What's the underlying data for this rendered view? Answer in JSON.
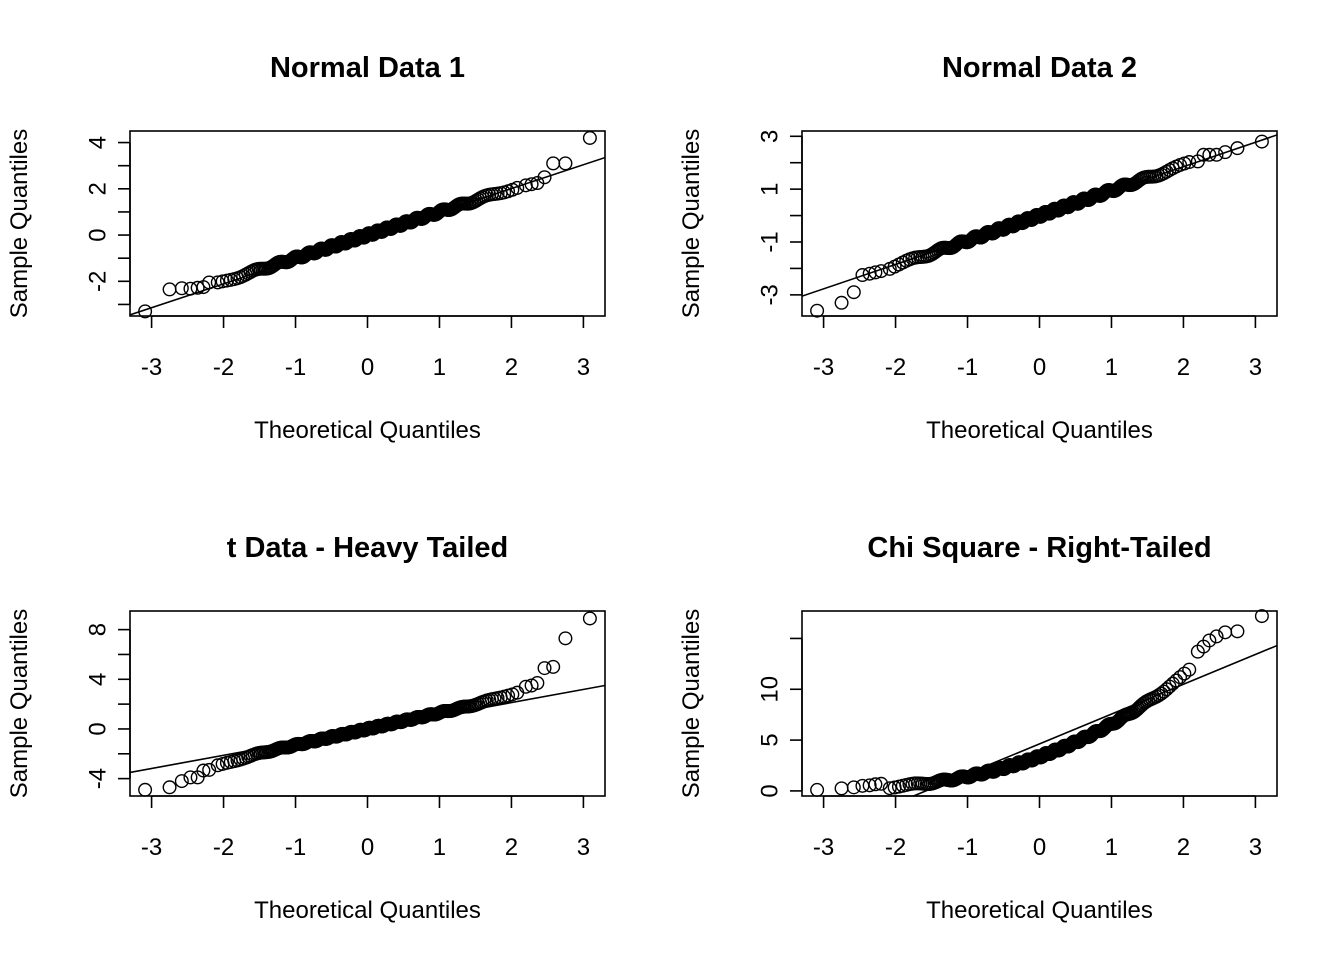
{
  "chart_data": [
    {
      "type": "scatter",
      "title": "Normal Data 1",
      "xlabel": "Theoretical Quantiles",
      "ylabel": "Sample Quantiles",
      "xlim": [
        -3.3,
        3.3
      ],
      "ylim": [
        -3.5,
        4.5
      ],
      "xticks": [
        -3,
        -2,
        -1,
        0,
        1,
        2,
        3
      ],
      "yticks": [
        -3,
        -2,
        -1,
        0,
        1,
        2,
        3,
        4
      ],
      "ytick_labels": [
        "",
        "-2",
        "",
        "0",
        "",
        "2",
        "",
        "4"
      ],
      "grid": false,
      "shape": "normal",
      "scale": 1.0,
      "tail": [
        [
          -3.09,
          -3.3
        ],
        [
          -2.75,
          -2.35
        ],
        [
          -2.58,
          -2.3
        ],
        [
          -2.46,
          -2.32
        ],
        [
          -2.36,
          -2.28
        ],
        [
          -2.28,
          -2.25
        ],
        [
          -2.2,
          -2.05
        ],
        [
          2.2,
          2.15
        ],
        [
          2.28,
          2.2
        ],
        [
          2.36,
          2.25
        ],
        [
          2.46,
          2.5
        ],
        [
          2.58,
          3.1
        ],
        [
          2.75,
          3.1
        ],
        [
          3.09,
          4.2
        ]
      ],
      "ref_line": [
        [
          -3.3,
          -3.45
        ],
        [
          3.3,
          3.35
        ]
      ]
    },
    {
      "type": "scatter",
      "title": "Normal Data 2",
      "xlabel": "Theoretical Quantiles",
      "ylabel": "Sample Quantiles",
      "xlim": [
        -3.3,
        3.3
      ],
      "ylim": [
        -3.8,
        3.2
      ],
      "xticks": [
        -3,
        -2,
        -1,
        0,
        1,
        2,
        3
      ],
      "yticks": [
        -3,
        -2,
        -1,
        0,
        1,
        2,
        3
      ],
      "ytick_labels": [
        "-3",
        "",
        "-1",
        "",
        "1",
        "",
        "3"
      ],
      "grid": false,
      "shape": "normal",
      "scale": 0.95,
      "tail": [
        [
          -3.09,
          -3.6
        ],
        [
          -2.75,
          -3.3
        ],
        [
          -2.58,
          -2.9
        ],
        [
          -2.46,
          -2.25
        ],
        [
          -2.36,
          -2.2
        ],
        [
          -2.28,
          -2.15
        ],
        [
          -2.2,
          -2.1
        ],
        [
          2.2,
          2.05
        ],
        [
          2.28,
          2.3
        ],
        [
          2.36,
          2.3
        ],
        [
          2.46,
          2.3
        ],
        [
          2.58,
          2.4
        ],
        [
          2.75,
          2.55
        ],
        [
          3.09,
          2.8
        ]
      ],
      "ref_line": [
        [
          -3.3,
          -3.05
        ],
        [
          3.3,
          3.05
        ]
      ]
    },
    {
      "type": "scatter",
      "title": "t Data - Heavy Tailed",
      "xlabel": "Theoretical Quantiles",
      "ylabel": "Sample Quantiles",
      "xlim": [
        -3.3,
        3.3
      ],
      "ylim": [
        -5.4,
        9.5
      ],
      "xticks": [
        -3,
        -2,
        -1,
        0,
        1,
        2,
        3
      ],
      "yticks": [
        -4,
        -2,
        0,
        2,
        4,
        6,
        8
      ],
      "ytick_labels": [
        "-4",
        "",
        "0",
        "",
        "4",
        "",
        "8"
      ],
      "grid": false,
      "shape": "heavy",
      "scale": 1.3,
      "tail": [
        [
          -3.09,
          -4.9
        ],
        [
          -2.75,
          -4.7
        ],
        [
          -2.58,
          -4.2
        ],
        [
          -2.46,
          -3.9
        ],
        [
          -2.36,
          -3.9
        ],
        [
          -2.28,
          -3.35
        ],
        [
          -2.2,
          -3.3
        ],
        [
          2.2,
          3.4
        ],
        [
          2.28,
          3.5
        ],
        [
          2.36,
          3.7
        ],
        [
          2.46,
          4.9
        ],
        [
          2.58,
          5.0
        ],
        [
          2.75,
          7.3
        ],
        [
          3.09,
          8.9
        ]
      ],
      "ref_line": [
        [
          -3.3,
          -3.5
        ],
        [
          3.3,
          3.5
        ]
      ]
    },
    {
      "type": "scatter",
      "title": "Chi Square - Right-Tailed",
      "xlabel": "Theoretical Quantiles",
      "ylabel": "Sample Quantiles",
      "xlim": [
        -3.3,
        3.3
      ],
      "ylim": [
        -0.5,
        17.7
      ],
      "xticks": [
        -3,
        -2,
        -1,
        0,
        1,
        2,
        3
      ],
      "yticks": [
        0,
        5,
        10,
        15
      ],
      "ytick_labels": [
        "0",
        "5",
        "10",
        ""
      ],
      "grid": false,
      "shape": "chisq",
      "scale": 1.0,
      "tail": [
        [
          -3.09,
          0.1
        ],
        [
          -2.75,
          0.25
        ],
        [
          -2.58,
          0.35
        ],
        [
          -2.46,
          0.5
        ],
        [
          -2.36,
          0.55
        ],
        [
          -2.28,
          0.65
        ],
        [
          -2.2,
          0.7
        ],
        [
          2.2,
          13.7
        ],
        [
          2.28,
          14.2
        ],
        [
          2.36,
          14.8
        ],
        [
          2.46,
          15.2
        ],
        [
          2.58,
          15.6
        ],
        [
          2.75,
          15.7
        ],
        [
          3.09,
          17.2
        ]
      ],
      "ref_line": [
        [
          -1.75,
          -0.5
        ],
        [
          3.3,
          14.3
        ]
      ]
    }
  ]
}
